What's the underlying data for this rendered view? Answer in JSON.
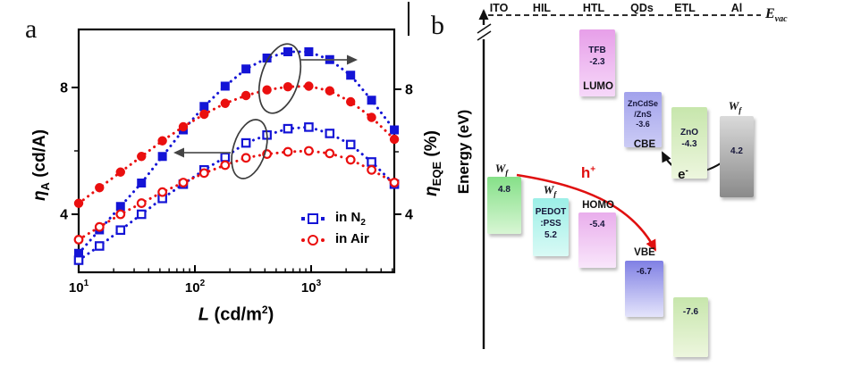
{
  "figure": {
    "panel_a_label": "a",
    "panel_b_label": "b"
  },
  "chart_data": {
    "type": "line",
    "title": "",
    "xlabel": "L (cd/m²)",
    "ylabel_left": "η_A (cd/A)",
    "ylabel_right": "η_EQE (%)",
    "x_scale": "log",
    "xlim": [
      10,
      5200
    ],
    "ylim_left": [
      2.1,
      9.9
    ],
    "ylim_right": [
      2.3,
      9.9
    ],
    "grid": "off",
    "legend_position": "lower right inside",
    "x_label_parts": {
      "sym": "L",
      "unit_pre": "(cd/m",
      "sup": "2",
      "unit_post": ")"
    },
    "x_ticks": [
      {
        "v": 10,
        "label_base": "10",
        "label_exp": "1"
      },
      {
        "v": 100,
        "label_base": "10",
        "label_exp": "2"
      },
      {
        "v": 1000,
        "label_base": "10",
        "label_exp": "3"
      }
    ],
    "y_left": {
      "sym": "η",
      "sym_sub": "A",
      "unit": "(cd/A)",
      "ticks": [
        {
          "v": 4,
          "label": "4"
        },
        {
          "v": 8,
          "label": "8"
        }
      ],
      "minor": [
        6
      ]
    },
    "y_right": {
      "sym": "η",
      "sym_sub": "EQE",
      "unit": "(%)",
      "ticks": [
        {
          "v": 4,
          "label": "4"
        },
        {
          "v": 8,
          "label": "8"
        }
      ],
      "minor": [
        6
      ]
    },
    "series": [
      {
        "id": "eqe-n2",
        "name": "η_EQE in N2",
        "axis": "right",
        "marker": "square-filled",
        "color": "#1414d6",
        "x": [
          10,
          15.1,
          22.9,
          34.7,
          52.5,
          79.4,
          120,
          182,
          275,
          417,
          631,
          955,
          1445,
          2188,
          3311,
          5200
        ],
        "y": [
          2.75,
          3.5,
          4.25,
          5.0,
          5.85,
          6.7,
          7.45,
          8.1,
          8.65,
          9.0,
          9.2,
          9.2,
          8.95,
          8.45,
          7.65,
          6.7
        ]
      },
      {
        "id": "eqe-air",
        "name": "η_EQE in Air",
        "axis": "right",
        "marker": "circle-filled",
        "color": "#ea0f0f",
        "x": [
          10,
          15.1,
          22.9,
          34.7,
          52.5,
          79.4,
          120,
          182,
          275,
          417,
          631,
          955,
          1445,
          2188,
          3311,
          5200
        ],
        "y": [
          4.35,
          4.85,
          5.35,
          5.85,
          6.35,
          6.8,
          7.2,
          7.55,
          7.8,
          7.98,
          8.08,
          8.1,
          7.95,
          7.6,
          7.1,
          6.4
        ]
      },
      {
        "id": "ca-n2",
        "name": "η_A in N2",
        "axis": "left",
        "marker": "square-open",
        "color": "#1414d6",
        "x": [
          10,
          15.1,
          22.9,
          34.7,
          52.5,
          79.4,
          120,
          182,
          275,
          417,
          631,
          955,
          1445,
          2188,
          3311,
          5200
        ],
        "y": [
          2.55,
          3.0,
          3.5,
          4.0,
          4.5,
          4.95,
          5.4,
          5.8,
          6.25,
          6.5,
          6.7,
          6.75,
          6.55,
          6.2,
          5.65,
          4.95
        ]
      },
      {
        "id": "ca-air",
        "name": "η_A in Air",
        "axis": "left",
        "marker": "circle-open",
        "color": "#ea0f0f",
        "x": [
          10,
          15.1,
          22.9,
          34.7,
          52.5,
          79.4,
          120,
          182,
          275,
          417,
          631,
          955,
          1445,
          2188,
          3311,
          5200
        ],
        "y": [
          3.2,
          3.6,
          4.0,
          4.35,
          4.7,
          5.0,
          5.3,
          5.55,
          5.78,
          5.9,
          5.97,
          6.0,
          5.92,
          5.72,
          5.4,
          5.0
        ]
      }
    ],
    "legend": [
      {
        "text": "in N",
        "sub": "2",
        "marker": "square-open",
        "color": "#1414d6"
      },
      {
        "text": "in Air",
        "sub": "",
        "marker": "circle-open",
        "color": "#ea0f0f"
      }
    ]
  },
  "diagram": {
    "ylabel": "Energy (eV)",
    "evac": {
      "main": "E",
      "sub": "vac"
    },
    "layers": [
      "ITO",
      "HIL",
      "HTL",
      "QDs",
      "ETL",
      "Al"
    ],
    "wf": {
      "main": "W",
      "sub": "f"
    },
    "boxes": {
      "ito": {
        "value": "4.8"
      },
      "pedot": {
        "line1": "PEDOT",
        "line2": ":PSS",
        "line3": "5.2"
      },
      "tfb": {
        "line1": "TFB",
        "line2": "-2.3",
        "below": "LUMO"
      },
      "homo": {
        "above": "HOMO",
        "value": "-5.4"
      },
      "qd_cb": {
        "line1": "ZnCdSe",
        "line2": "/ZnS",
        "line3": "-3.6",
        "below": "CBE"
      },
      "qd_vb": {
        "above": "VBE",
        "value": "-6.7"
      },
      "zno": {
        "line1": "ZnO",
        "line2": "-4.3"
      },
      "etl_deep": {
        "value": "-7.6"
      },
      "al": {
        "value": "4.2"
      }
    },
    "hole": {
      "main": "h",
      "sup": "+"
    },
    "electron": {
      "main": "e",
      "sup": "-"
    }
  }
}
